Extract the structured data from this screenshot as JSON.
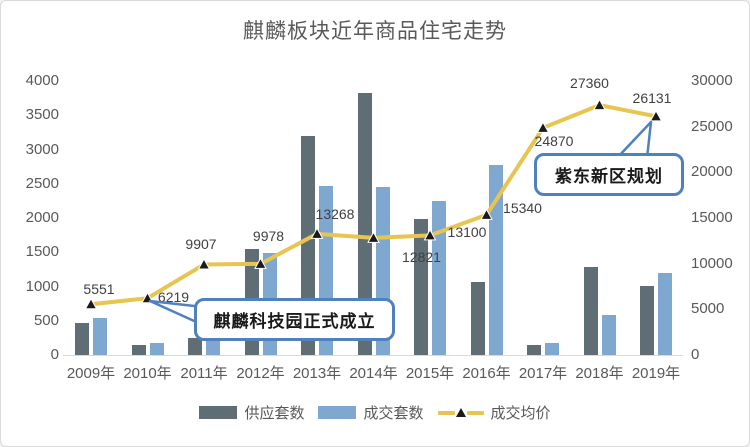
{
  "title": "麒麟板块近年商品住宅走势",
  "chart_data": {
    "type": "bar",
    "subtype": "combo-bar-line",
    "categories": [
      "2009年",
      "2010年",
      "2011年",
      "2012年",
      "2013年",
      "2014年",
      "2015年",
      "2016年",
      "2017年",
      "2018年",
      "2019年"
    ],
    "series": [
      {
        "name": "供应套数",
        "chart_type": "bar",
        "axis": "left",
        "color": "#5F6E74",
        "values": [
          460,
          150,
          250,
          1550,
          3190,
          3820,
          1990,
          1060,
          150,
          1280,
          1010
        ]
      },
      {
        "name": "成交套数",
        "chart_type": "bar",
        "axis": "left",
        "color": "#7FA8D0",
        "values": [
          545,
          180,
          350,
          1490,
          2470,
          2450,
          2250,
          2780,
          180,
          590,
          1190
        ]
      },
      {
        "name": "成交均价",
        "chart_type": "line",
        "axis": "right",
        "color": "#E8C550",
        "marker": "black-triangle",
        "marker_color": "#1A1A1A",
        "values": [
          5551,
          6219,
          9907,
          9978,
          13268,
          12821,
          13100,
          15340,
          24870,
          27360,
          26131
        ],
        "data_labels": [
          "5551",
          "6219",
          "9907",
          "9978",
          "13268",
          "12821",
          "13100",
          "15340",
          "24870",
          "27360",
          "26131"
        ]
      }
    ],
    "left_axis": {
      "min": 0,
      "max": 4000,
      "step": 500,
      "ticks": [
        "0",
        "500",
        "1000",
        "1500",
        "2000",
        "2500",
        "3000",
        "3500",
        "4000"
      ]
    },
    "right_axis": {
      "min": 0,
      "max": 30000,
      "step": 5000,
      "ticks": [
        "0",
        "5000",
        "10000",
        "15000",
        "20000",
        "25000",
        "30000"
      ]
    },
    "grid": "off",
    "legend_position": "bottom",
    "annotations": [
      {
        "text": "麒麟科技园正式成立",
        "points_to": "2010年"
      },
      {
        "text": "紫东新区规划",
        "points_to": "2019年"
      }
    ]
  }
}
